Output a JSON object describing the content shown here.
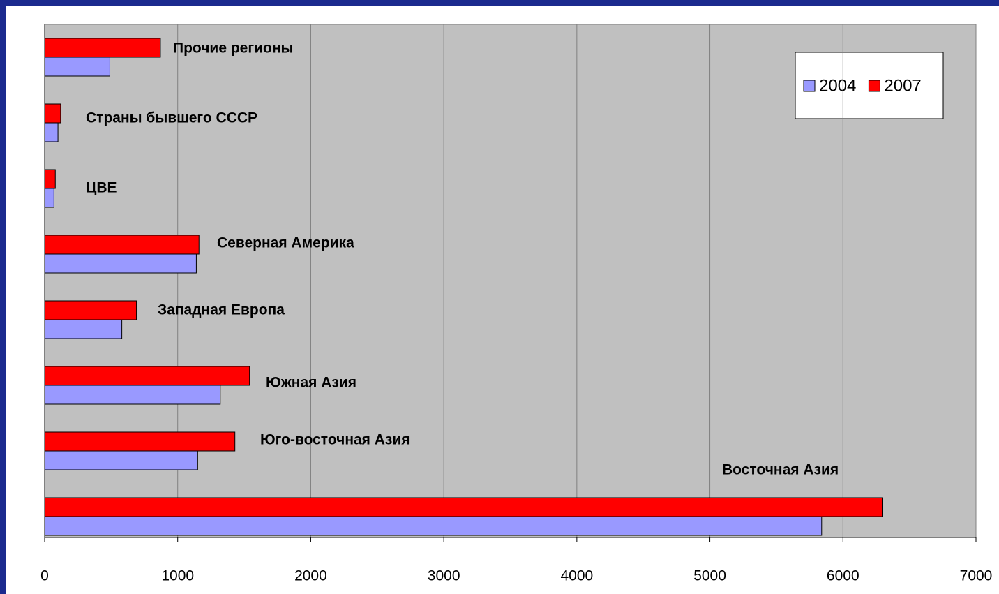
{
  "chart_data": {
    "type": "bar",
    "orientation": "horizontal",
    "categories": [
      "Прочие регионы",
      "Страны бывшего СССР",
      "ЦВЕ",
      "Северная Америка",
      "Западная Европа",
      "Южная Азия",
      "Юго-восточная Азия",
      "Восточная Азия"
    ],
    "series": [
      {
        "name": "2004",
        "color": "#9999ff",
        "values": [
          490,
          100,
          70,
          1140,
          580,
          1320,
          1150,
          5840
        ]
      },
      {
        "name": "2007",
        "color": "#ff0000",
        "values": [
          870,
          120,
          80,
          1160,
          690,
          1540,
          1430,
          6300
        ]
      }
    ],
    "xlim": [
      0,
      7000
    ],
    "xticks": [
      0,
      1000,
      2000,
      3000,
      4000,
      5000,
      6000,
      7000
    ],
    "grid": true,
    "legend": "top-right"
  }
}
